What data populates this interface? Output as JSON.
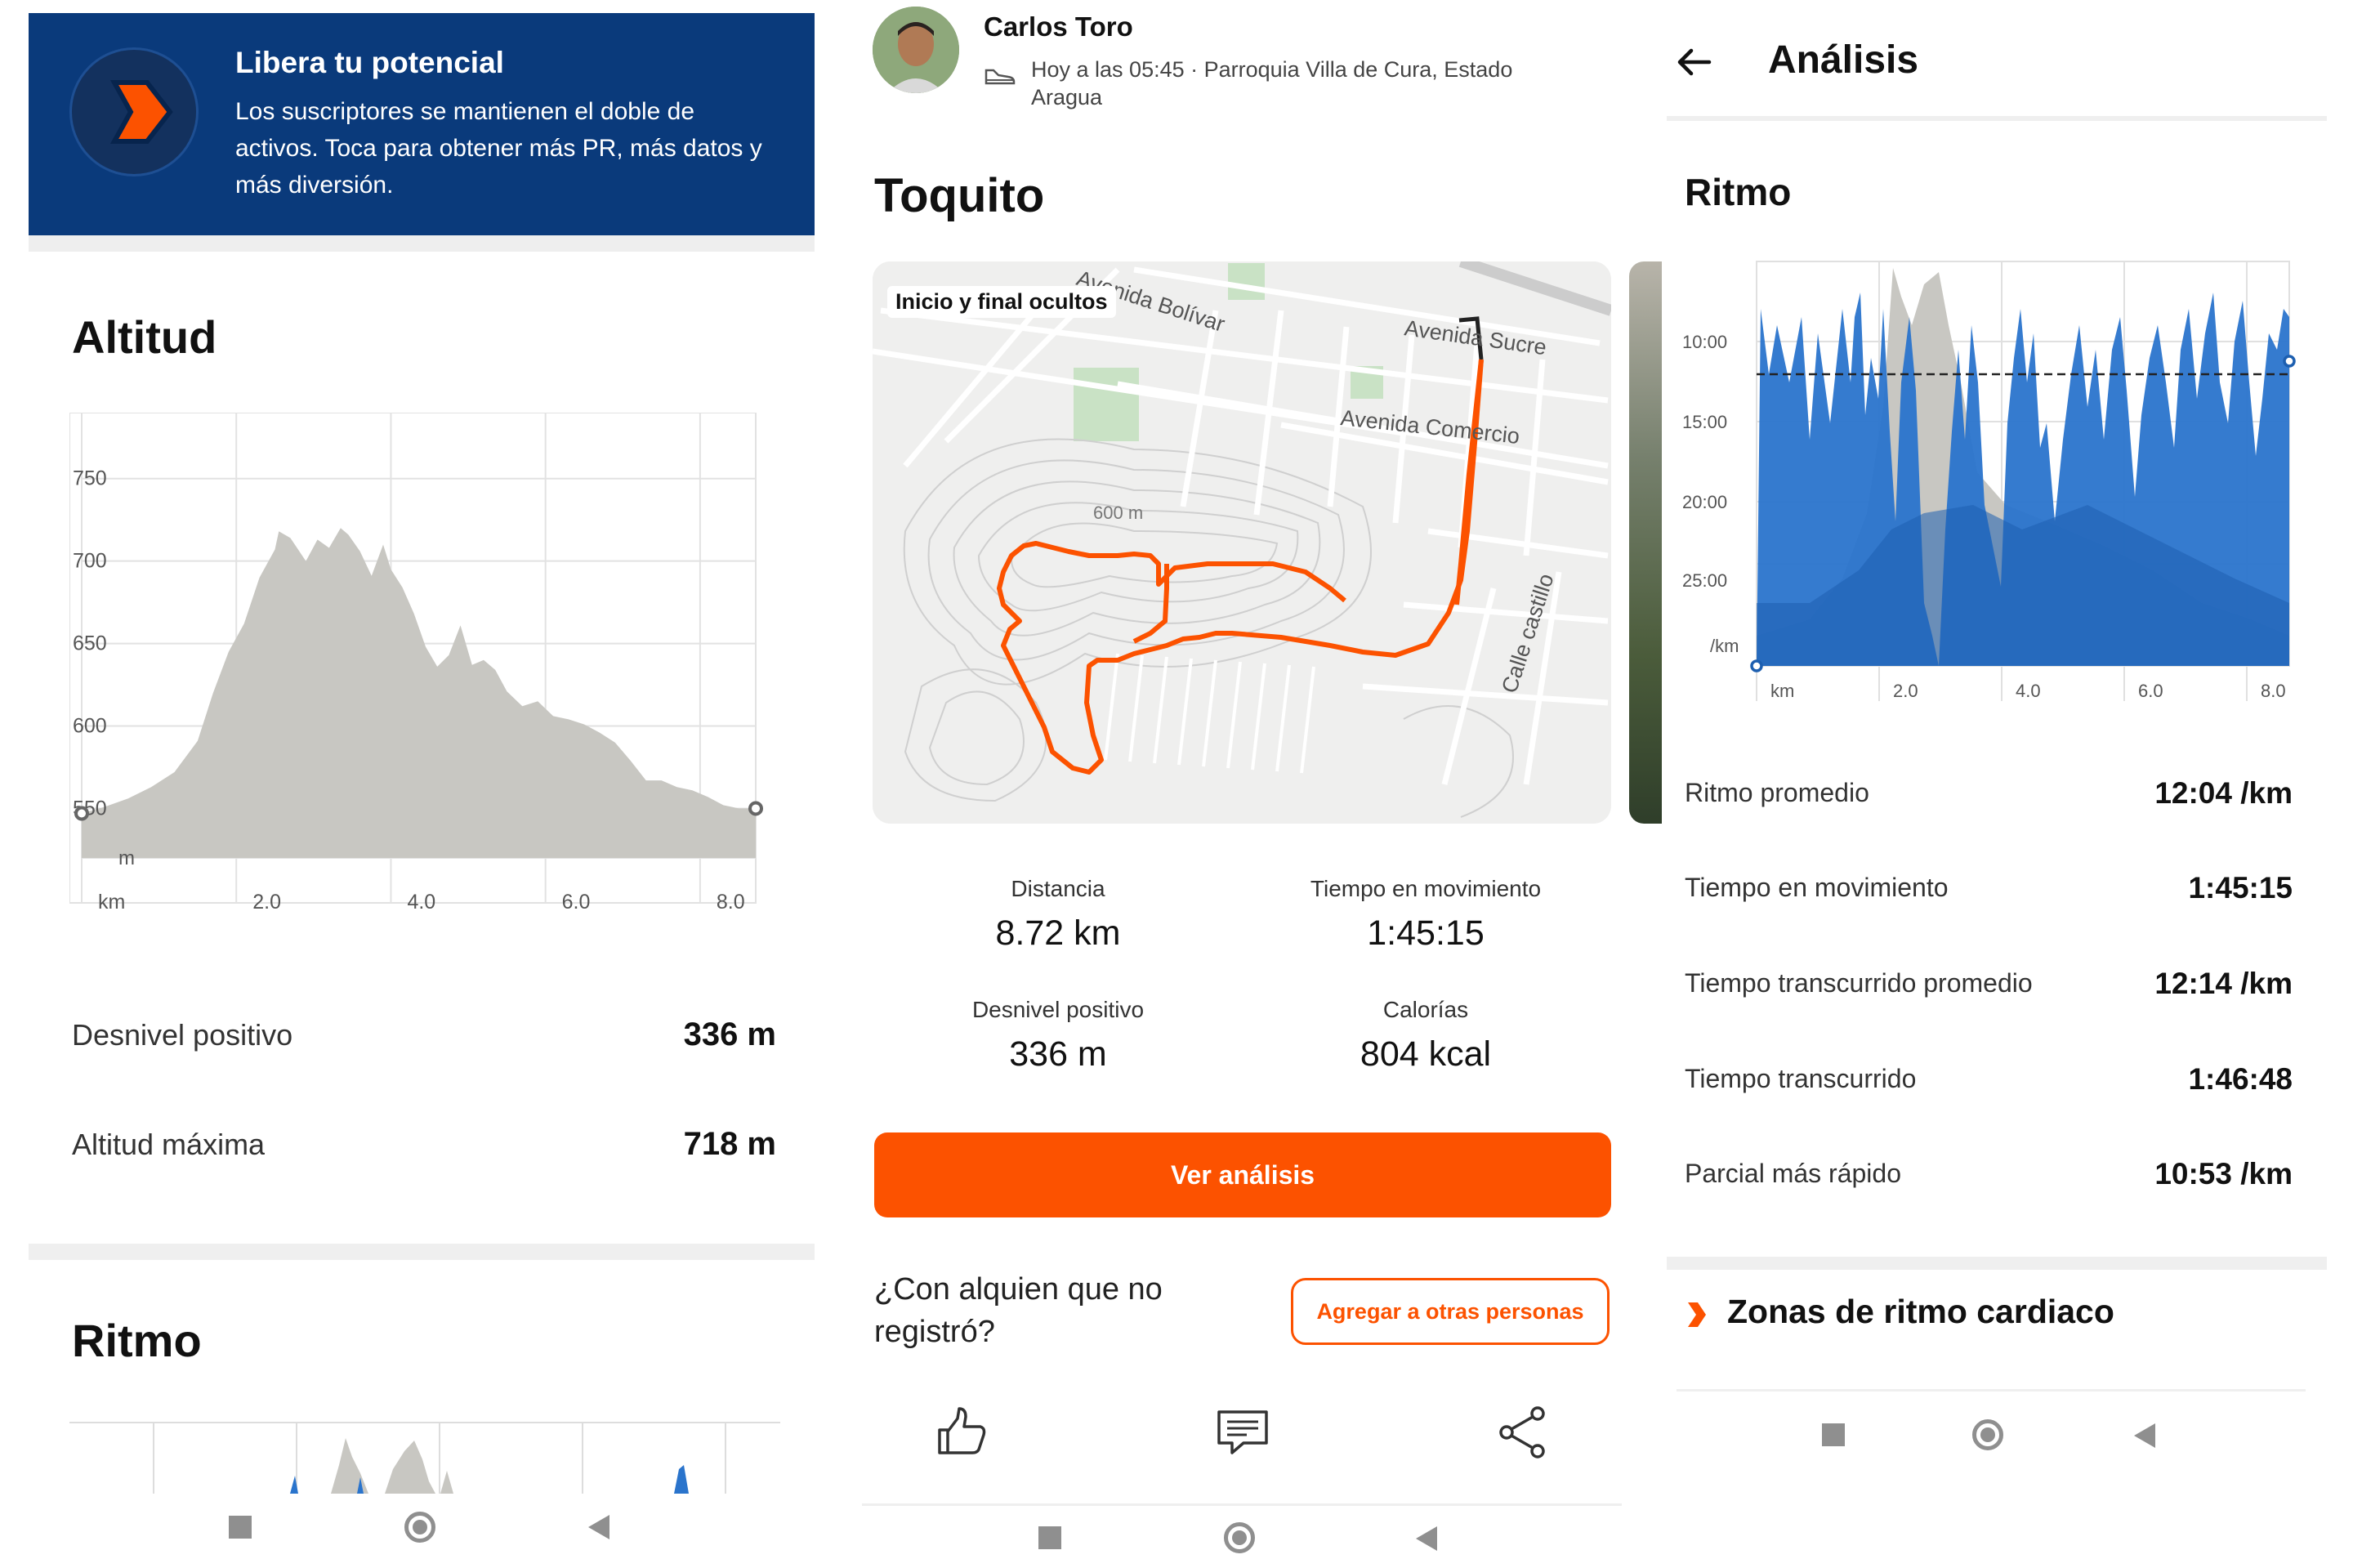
{
  "promo": {
    "title": "Libera tu potencial",
    "text": "Los suscriptores se mantienen el doble de activos. Toca para obtener más PR, más datos y más diversión."
  },
  "altitude": {
    "heading": "Altitud",
    "chart_data": {
      "type": "area",
      "ylabel": "m",
      "xlabel": "km",
      "x_ticks": [
        "km",
        "2.0",
        "4.0",
        "6.0",
        "8.0"
      ],
      "y_ticks": [
        "750",
        "700",
        "650",
        "600",
        "550"
      ],
      "ylim": [
        520,
        790
      ],
      "xlim": [
        0,
        8.72
      ],
      "x": [
        0,
        0.3,
        0.6,
        0.9,
        1.2,
        1.5,
        1.7,
        1.9,
        2.1,
        2.3,
        2.5,
        2.55,
        2.7,
        2.8,
        2.9,
        3.05,
        3.2,
        3.35,
        3.45,
        3.6,
        3.75,
        3.9,
        4.0,
        4.15,
        4.3,
        4.45,
        4.6,
        4.75,
        4.9,
        5.05,
        5.2,
        5.35,
        5.5,
        5.7,
        5.9,
        6.1,
        6.3,
        6.5,
        6.7,
        6.9,
        7.1,
        7.3,
        7.5,
        7.7,
        7.9,
        8.1,
        8.3,
        8.5,
        8.72
      ],
      "y": [
        547,
        551,
        556,
        563,
        572,
        591,
        620,
        645,
        662,
        690,
        707,
        718,
        714,
        707,
        700,
        713,
        708,
        720,
        716,
        706,
        691,
        710,
        695,
        684,
        668,
        648,
        636,
        643,
        661,
        637,
        640,
        634,
        621,
        612,
        615,
        606,
        604,
        601,
        596,
        590,
        579,
        567,
        567,
        563,
        561,
        557,
        552,
        550,
        550
      ],
      "grid": true
    },
    "stats": [
      {
        "label": "Desnivel positivo",
        "value": "336 m"
      },
      {
        "label": "Altitud máxima",
        "value": "718 m"
      }
    ]
  },
  "ritmo_preview": {
    "heading": "Ritmo"
  },
  "activity": {
    "athlete": "Carlos Toro",
    "meta": "Hoy a las 05:45 · Parroquia Villa de Cura, Estado Aragua",
    "title": "Toquito",
    "map": {
      "badge": "Inicio y final ocultos",
      "labels": [
        "Avenida Bolívar",
        "Avenida Sucre",
        "Avenida Comercio",
        "600 m",
        "Calle castillo"
      ]
    },
    "stats": [
      {
        "label": "Distancia",
        "value": "8.72 km"
      },
      {
        "label": "Tiempo en movimiento",
        "value": "1:45:15"
      },
      {
        "label": "Desnivel positivo",
        "value": "336 m"
      },
      {
        "label": "Calorías",
        "value": "804 kcal"
      }
    ],
    "analysis_button": "Ver análisis",
    "with_someone_question": "¿Con alquien que no registró?",
    "add_people_button": "Agregar a otras personas"
  },
  "analysis": {
    "title": "Análisis",
    "section": "Ritmo",
    "chart_data": {
      "type": "area",
      "ylabel": "/km",
      "y_ticks": [
        "10:00",
        "15:00",
        "20:00",
        "25:00",
        "/km"
      ],
      "x_ticks": [
        "km",
        "2.0",
        "4.0",
        "6.0",
        "8.0"
      ],
      "average_line": "12:04 /km",
      "grid": true,
      "elevation_background": true
    },
    "stats": [
      {
        "label": "Ritmo promedio",
        "value": "12:04 /km"
      },
      {
        "label": "Tiempo en movimiento",
        "value": "1:45:15"
      },
      {
        "label": "Tiempo transcurrido promedio",
        "value": "12:14 /km"
      },
      {
        "label": "Tiempo transcurrido",
        "value": "1:46:48"
      },
      {
        "label": "Parcial más rápido",
        "value": "10:53 /km"
      }
    ],
    "hr_zones": "Zonas de ritmo cardiaco"
  },
  "colors": {
    "brand": "#fc5200",
    "promo_bg": "#0a3a7b",
    "pace_blue": "#2a74cc",
    "elevation_grey": "#c8c7c2"
  }
}
